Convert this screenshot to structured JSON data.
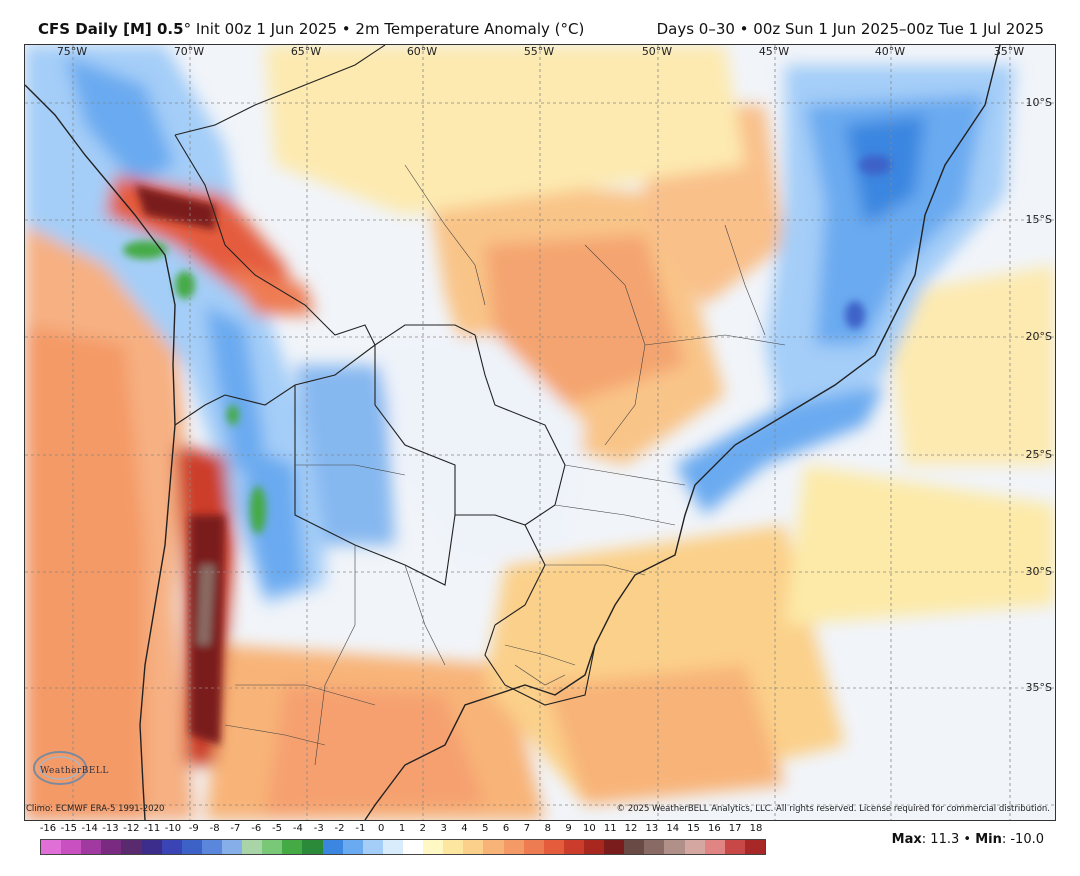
{
  "header": {
    "title_bold": "CFS Daily [M] 0.5",
    "title_rest": "° Init 00z 1 Jun 2025 • 2m Temperature Anomaly (°C)",
    "period": "Days 0–30 • 00z Sun 1 Jun 2025–00z Tue 1 Jul 2025"
  },
  "longitudes": [
    "75°W",
    "70°W",
    "65°W",
    "60°W",
    "55°W",
    "50°W",
    "45°W",
    "40°W",
    "35°W"
  ],
  "latitudes": [
    "10°S",
    "15°S",
    "20°S",
    "25°S",
    "30°S",
    "35°S"
  ],
  "footer": {
    "climo": "Climo: ECMWF ERA-5 1991-2020",
    "copyright": "© 2025 WeatherBELL Analytics, LLC. All rights reserved. License required for commercial distribution.",
    "logo_text": "WeatherBELL"
  },
  "colorbar": {
    "ticks": [
      "-16",
      "-15",
      "-14",
      "-13",
      "-12",
      "-11",
      "-10",
      "-9",
      "-8",
      "-7",
      "-6",
      "-5",
      "-4",
      "-3",
      "-2",
      "-1",
      "0",
      "1",
      "2",
      "3",
      "4",
      "5",
      "6",
      "7",
      "8",
      "9",
      "10",
      "11",
      "12",
      "13",
      "14",
      "15",
      "16",
      "17",
      "18"
    ],
    "colors": [
      "#e070d8",
      "#c850c0",
      "#a03aa0",
      "#7a2a80",
      "#5a2a6e",
      "#3c2c8c",
      "#3a44b4",
      "#3c62c8",
      "#5a86dc",
      "#86aee8",
      "#a8d4a8",
      "#78c878",
      "#44aa44",
      "#2a8a3a",
      "#3a86e0",
      "#6aaaf0",
      "#a4cef8",
      "#d8ecfc",
      "#ffffff",
      "#fff8c4",
      "#fde6a0",
      "#fbd08a",
      "#f8b478",
      "#f49a66",
      "#ee7c52",
      "#e45c3c",
      "#cc3c2a",
      "#a82820",
      "#7a1c1c",
      "#6a4a44",
      "#8a6a64",
      "#b09088",
      "#d4a8a0",
      "#e08484",
      "#c84848",
      "#a82828"
    ]
  },
  "max_label": "Max",
  "max_value": "11.3",
  "min_label": "Min",
  "min_value": "-10.0"
}
